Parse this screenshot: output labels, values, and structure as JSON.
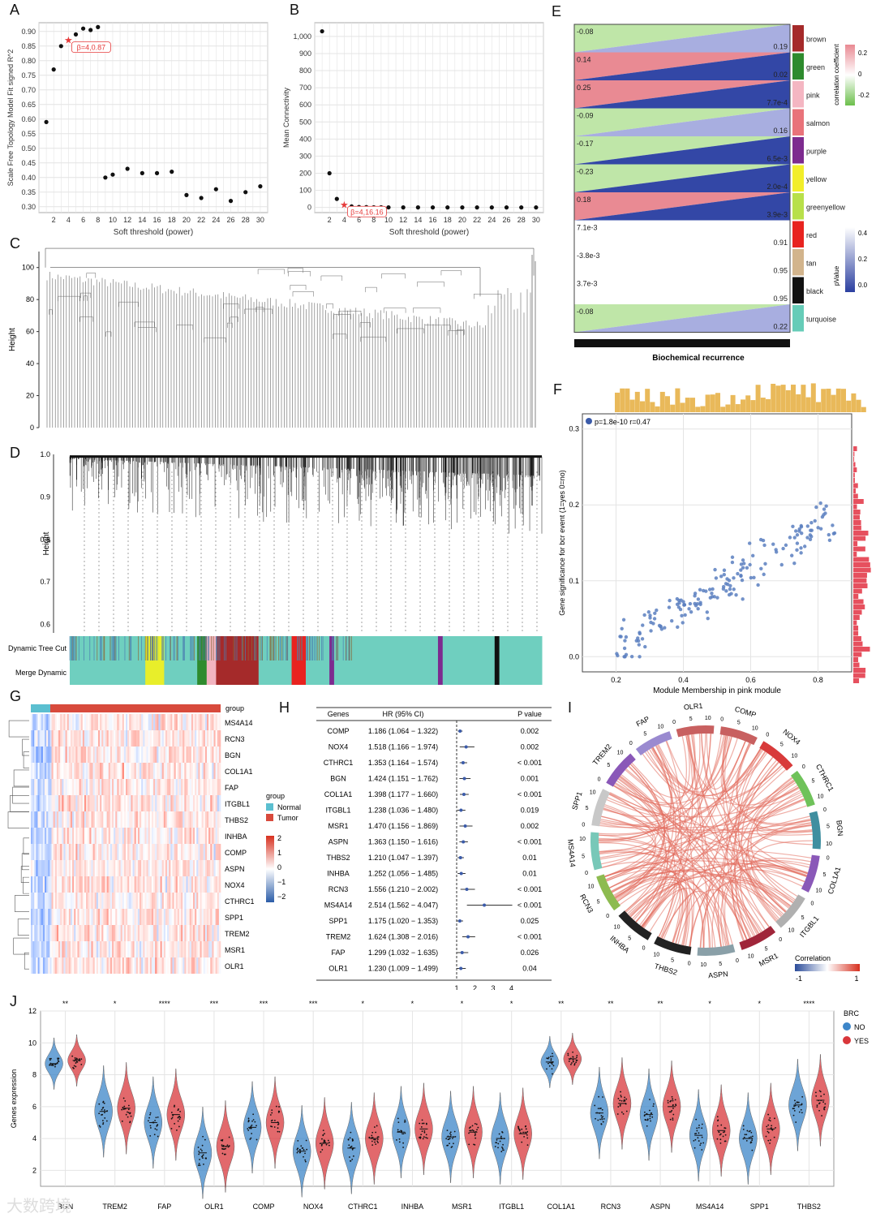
{
  "panel_labels": [
    "A",
    "B",
    "C",
    "D",
    "E",
    "F",
    "G",
    "H",
    "I",
    "J"
  ],
  "colors": {
    "red": "#e63b3b",
    "blue": "#3b5ba9",
    "lightblue": "#6fb6d9",
    "grid": "#e4e4e4",
    "turq": "#6fcfbf",
    "normal": "#5bbfd0",
    "tumor": "#d84a3c",
    "violin_blue": "#3d86c9",
    "violin_red": "#d9373b"
  },
  "chart_data": [
    {
      "id": "A",
      "type": "scatter",
      "xlabel": "Soft threshold (power)",
      "ylabel": "Scale Free Topology Model Fit signed R^2",
      "x": [
        1,
        2,
        3,
        4,
        5,
        6,
        7,
        8,
        9,
        10,
        12,
        14,
        16,
        18,
        20,
        22,
        24,
        26,
        28,
        30
      ],
      "y": [
        0.59,
        0.77,
        0.85,
        0.87,
        0.89,
        0.91,
        0.905,
        0.915,
        0.4,
        0.41,
        0.43,
        0.415,
        0.415,
        0.42,
        0.34,
        0.33,
        0.36,
        0.32,
        0.35,
        0.37
      ],
      "xticks": [
        2,
        4,
        6,
        8,
        10,
        12,
        14,
        16,
        18,
        20,
        22,
        24,
        26,
        28,
        30
      ],
      "yticks": [
        "0.30",
        "0.35",
        "0.40",
        "0.45",
        "0.50",
        "0.55",
        "0.60",
        "0.65",
        "0.70",
        "0.75",
        "0.80",
        "0.85",
        "0.90"
      ],
      "ylim": [
        0.28,
        0.93
      ],
      "annotation": "β=4,0.87"
    },
    {
      "id": "B",
      "type": "scatter",
      "xlabel": "Soft threshold (power)",
      "ylabel": "Mean Connectivity",
      "x": [
        1,
        2,
        3,
        4,
        5,
        6,
        7,
        8,
        9,
        10,
        12,
        14,
        16,
        18,
        20,
        22,
        24,
        26,
        28,
        30
      ],
      "y": [
        1030,
        200,
        50,
        16.16,
        6,
        3,
        2,
        1,
        1,
        0.5,
        0.3,
        0.2,
        0.1,
        0.1,
        0.1,
        0.1,
        0.1,
        0.1,
        0.1,
        0.1
      ],
      "xticks": [
        2,
        4,
        6,
        8,
        10,
        12,
        14,
        16,
        18,
        20,
        22,
        24,
        26,
        28,
        30
      ],
      "yticks": [
        "0",
        "100",
        "200",
        "300",
        "400",
        "500",
        "600",
        "700",
        "800",
        "900",
        "1,000"
      ],
      "ylim": [
        -30,
        1080
      ],
      "annotation": "β=4,16.16"
    },
    {
      "id": "C",
      "type": "dendrogram",
      "ylabel": "Height",
      "yticks": [
        "0",
        "20",
        "40",
        "60",
        "80",
        "100"
      ]
    },
    {
      "id": "D",
      "type": "dendrogram",
      "ylabel": "Height",
      "yticks": [
        "0.6",
        "0.7",
        "0.8",
        "0.9",
        "1.0"
      ],
      "rows": [
        "Dynamic Tree Cut",
        "Merge Dynamic"
      ]
    },
    {
      "id": "E",
      "type": "heatmap",
      "xlabel": "Biochemical recurrence",
      "modules": [
        "brown",
        "green",
        "pink",
        "salmon",
        "purple",
        "yellow",
        "greenyellow",
        "red",
        "tan",
        "black",
        "turquoise"
      ],
      "module_colors": [
        "#a52a2a",
        "#2e8b2e",
        "#f4b6c2",
        "#e9737a",
        "#7d2b8f",
        "#f2ee2a",
        "#b8e04a",
        "#e8231f",
        "#d2b48c",
        "#111111",
        "#66ccb8"
      ],
      "cor": [
        "-0.08",
        "0.14",
        "0.25",
        "-0.09",
        "-0.17",
        "-0.23",
        "0.18",
        "7.1e-3",
        "-3.8e-3",
        "3.7e-3",
        "-0.08"
      ],
      "pval": [
        "0.19",
        "0.02",
        "7.7e-4",
        "0.16",
        "6.5e-3",
        "2.0e-4",
        "3.9e-3",
        "0.91",
        "0.95",
        "0.95",
        "0.22"
      ],
      "legend_cor": {
        "title": "correlation coefficient",
        "ticks": [
          "0.2",
          "0",
          "-0.2"
        ]
      },
      "legend_p": {
        "title": "pValue",
        "ticks": [
          "0.4",
          "0.2",
          "0.0"
        ]
      }
    },
    {
      "id": "F",
      "type": "scatter",
      "xlabel": "Module Membership in pink module",
      "ylabel": "Gene significance for bcr event (1=yes 0=no)",
      "legend": "p=1.8e-10 r=0.47",
      "xticks": [
        "0.2",
        "0.4",
        "0.6",
        "0.8"
      ],
      "yticks": [
        "0.0",
        "0.1",
        "0.2",
        "0.3"
      ]
    },
    {
      "id": "G",
      "type": "heatmap",
      "genes": [
        "MS4A14",
        "RCN3",
        "BGN",
        "COL1A1",
        "FAP",
        "ITGBL1",
        "THBS2",
        "INHBA",
        "COMP",
        "ASPN",
        "NOX4",
        "CTHRC1",
        "SPP1",
        "TREM2",
        "MSR1",
        "OLR1"
      ],
      "top_label": "group",
      "legend_title": "group",
      "legend_items": [
        "Normal",
        "Tumor"
      ],
      "scale_ticks": [
        "2",
        "1",
        "0",
        "−1",
        "−2"
      ]
    },
    {
      "id": "H",
      "type": "table",
      "columns": [
        "Genes",
        "HR (95% CI)",
        "P value"
      ],
      "rows": [
        [
          "COMP",
          "1.186 (1.064 − 1.322)",
          "0.002"
        ],
        [
          "NOX4",
          "1.518 (1.166 − 1.974)",
          "0.002"
        ],
        [
          "CTHRC1",
          "1.353 (1.164 − 1.574)",
          "< 0.001"
        ],
        [
          "BGN",
          "1.424 (1.151 − 1.762)",
          "0.001"
        ],
        [
          "COL1A1",
          "1.398 (1.177 − 1.660)",
          "< 0.001"
        ],
        [
          "ITGBL1",
          "1.238 (1.036 − 1.480)",
          "0.019"
        ],
        [
          "MSR1",
          "1.470 (1.156 − 1.869)",
          "0.002"
        ],
        [
          "ASPN",
          "1.363 (1.150 − 1.616)",
          "< 0.001"
        ],
        [
          "THBS2",
          "1.210 (1.047 − 1.397)",
          "0.01"
        ],
        [
          "INHBA",
          "1.252 (1.056 − 1.485)",
          "0.01"
        ],
        [
          "RCN3",
          "1.556 (1.210 − 2.002)",
          "< 0.001"
        ],
        [
          "MS4A14",
          "2.514 (1.562 − 4.047)",
          "< 0.001"
        ],
        [
          "SPP1",
          "1.175 (1.020 − 1.353)",
          "0.025"
        ],
        [
          "TREM2",
          "1.624 (1.308 − 2.016)",
          "< 0.001"
        ],
        [
          "FAP",
          "1.299 (1.032 − 1.635)",
          "0.026"
        ],
        [
          "OLR1",
          "1.230 (1.009 − 1.499)",
          "0.04"
        ]
      ],
      "hr": [
        1.186,
        1.518,
        1.353,
        1.424,
        1.398,
        1.238,
        1.47,
        1.363,
        1.21,
        1.252,
        1.556,
        2.514,
        1.175,
        1.624,
        1.299,
        1.23
      ],
      "lo": [
        1.064,
        1.166,
        1.164,
        1.151,
        1.177,
        1.036,
        1.156,
        1.15,
        1.047,
        1.056,
        1.21,
        1.562,
        1.02,
        1.308,
        1.032,
        1.009
      ],
      "hi": [
        1.322,
        1.974,
        1.574,
        1.762,
        1.66,
        1.48,
        1.869,
        1.616,
        1.397,
        1.485,
        2.002,
        4.047,
        1.353,
        2.016,
        1.635,
        1.499
      ],
      "xticks": [
        "1",
        "2",
        "3",
        "4"
      ]
    },
    {
      "id": "I",
      "type": "chord",
      "genes": [
        "COMP",
        "NOX4",
        "CTHRC1",
        "BGN",
        "COL1A1",
        "ITGBL1",
        "MSR1",
        "ASPN",
        "THBS2",
        "INHBA",
        "RCN3",
        "MS4A14",
        "SPP1",
        "TREM2",
        "FAP",
        "OLR1"
      ],
      "legend_title": "Correlation",
      "legend_ticks": [
        "-1",
        "1"
      ]
    },
    {
      "id": "J",
      "type": "violin",
      "ylabel": "Genes expression",
      "yticks": [
        "2",
        "4",
        "6",
        "8",
        "10",
        "12"
      ],
      "genes": [
        "BGN",
        "TREM2",
        "FAP",
        "OLR1",
        "COMP",
        "NOX4",
        "CTHRC1",
        "INHBA",
        "MSR1",
        "ITGBL1",
        "COL1A1",
        "RCN3",
        "ASPN",
        "MS4A14",
        "SPP1",
        "THBS2"
      ],
      "sig": [
        "**",
        "*",
        "****",
        "***",
        "***",
        "***",
        "*",
        "*",
        "*",
        "*",
        "**",
        "**",
        "**",
        "*",
        "*",
        "****"
      ],
      "median_no": [
        8.7,
        5.7,
        5.0,
        3.1,
        4.7,
        3.2,
        3.4,
        4.4,
        4.1,
        4.0,
        8.8,
        5.6,
        5.5,
        4.2,
        4.0,
        6.1
      ],
      "median_yes": [
        8.9,
        5.9,
        5.5,
        3.5,
        5.0,
        3.7,
        4.0,
        4.6,
        4.4,
        4.3,
        9.0,
        6.2,
        6.0,
        4.5,
        4.6,
        6.4
      ],
      "legend_title": "BRC",
      "legend_items": [
        "NO",
        "YES"
      ]
    }
  ],
  "watermark": "大数跨境"
}
